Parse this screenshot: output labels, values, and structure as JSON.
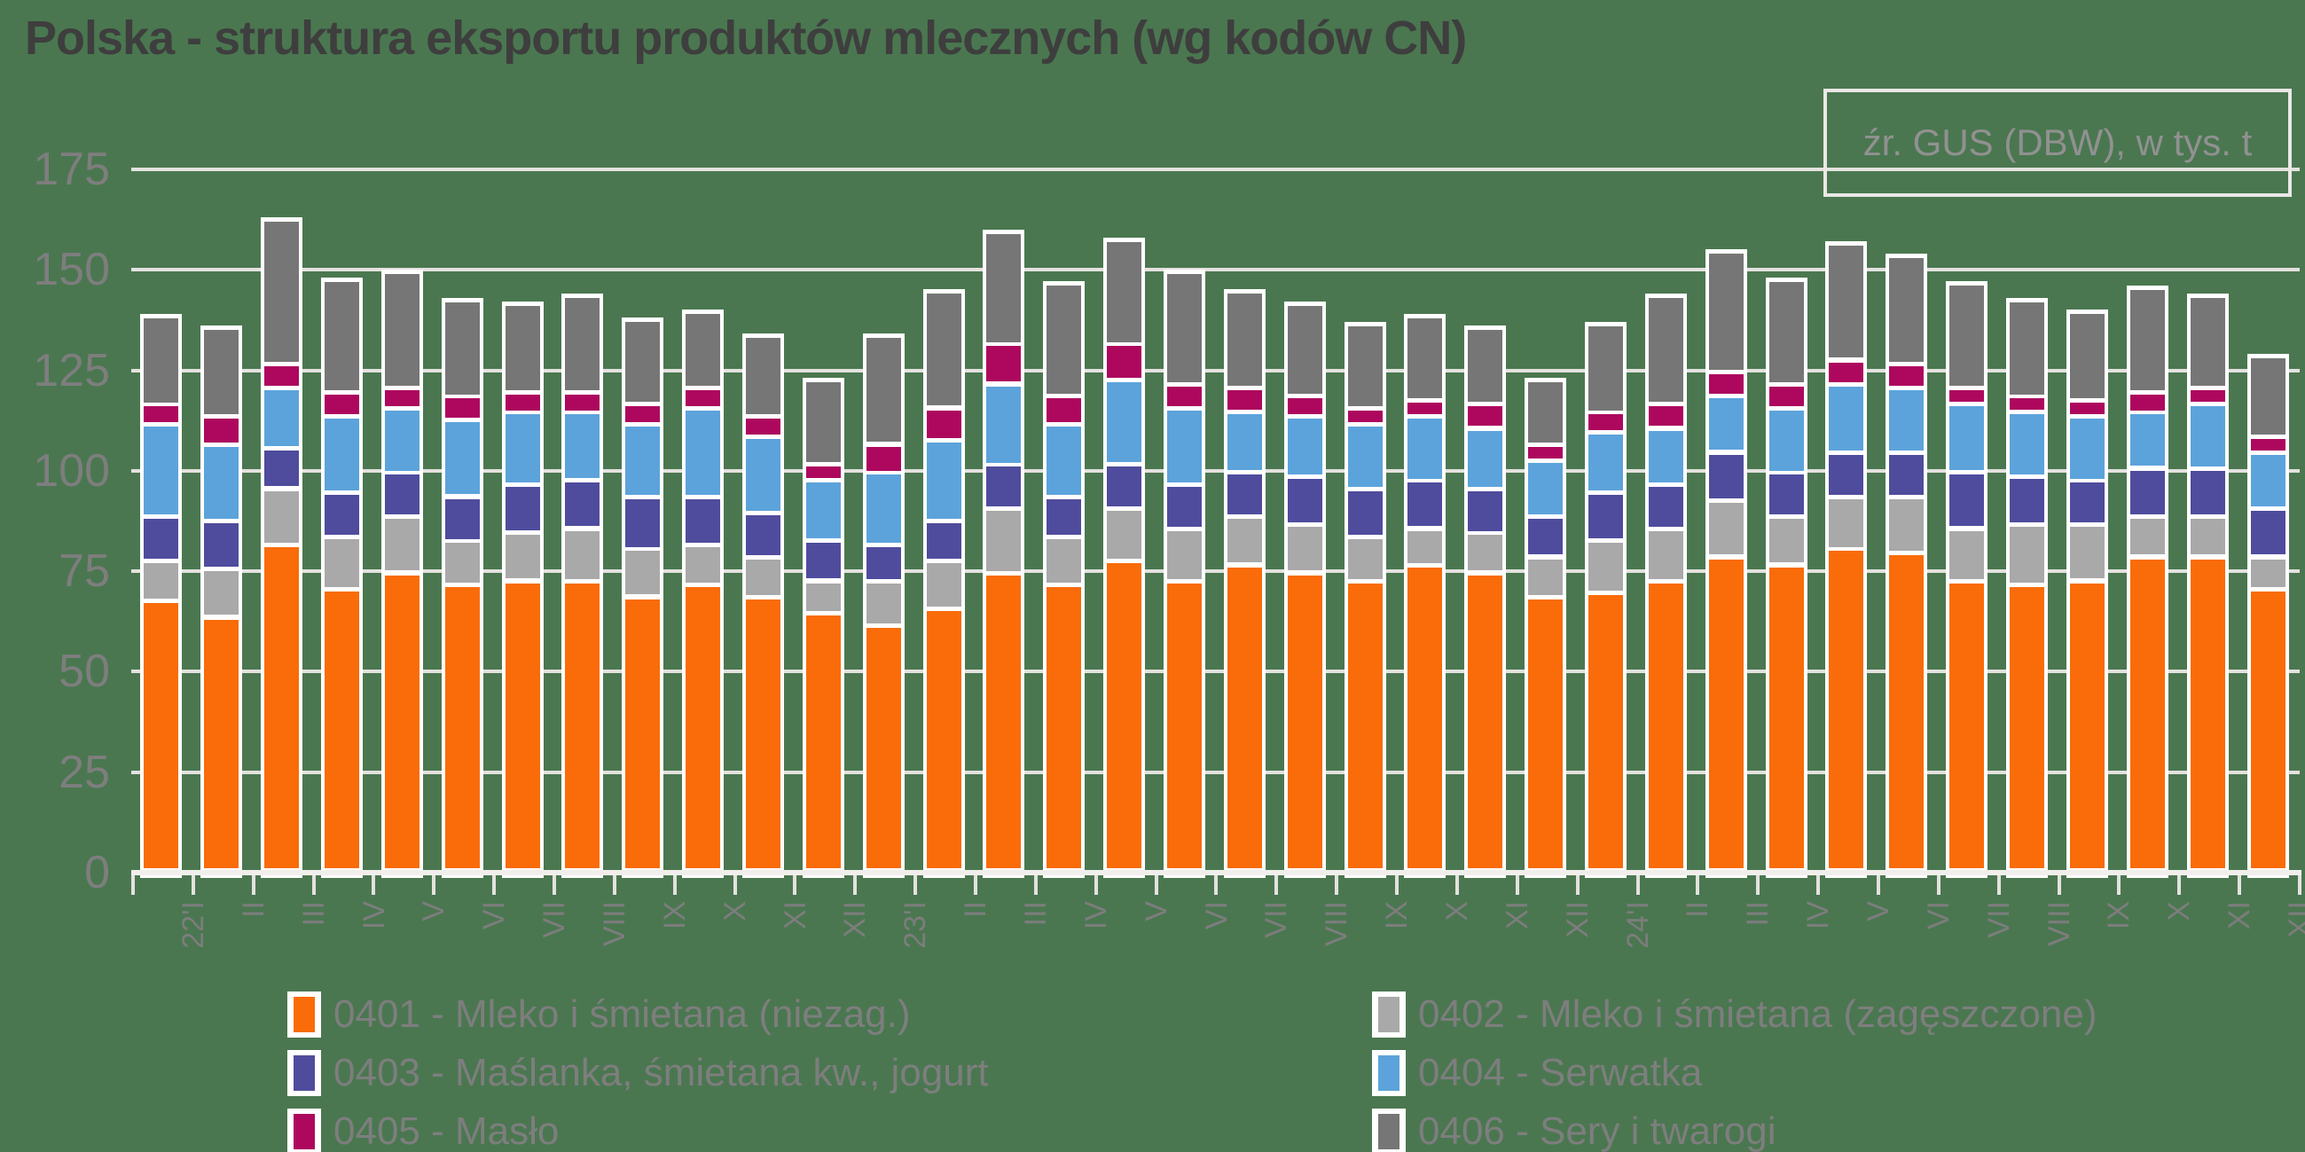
{
  "title": "Polska - struktura eksportu produktów mlecznych (wg kodów CN)",
  "source_note": "źr. GUS (DBW), w tys. t",
  "colors": {
    "background": "#4A7750",
    "title_text": "#3E3E3E",
    "axis_text": "#7D7D7D",
    "grid_line": "#E4E2DF",
    "axis_line": "#F1EFEC",
    "source_text": "#919191",
    "source_border": "#EAE8E6"
  },
  "chart_data": {
    "type": "bar",
    "stacked": true,
    "title": "Polska - struktura eksportu produktów mlecznych (wg kodów CN)",
    "unit": "tys. t",
    "xlabel": "",
    "ylabel": "",
    "grid": true,
    "legend_position": "bottom",
    "y_axis": {
      "ticks": [
        175,
        150,
        125,
        100,
        75,
        50,
        25,
        0
      ],
      "ylim": [
        0,
        175
      ]
    },
    "categories": [
      "22'I",
      "II",
      "III",
      "IV",
      "V",
      "VI",
      "VII",
      "VIII",
      "IX",
      "X",
      "XI",
      "XII",
      "23'I",
      "II",
      "III",
      "IV",
      "V",
      "VI",
      "VII",
      "VIII",
      "IX",
      "X",
      "XI",
      "XII",
      "24'I",
      "II",
      "III",
      "IV",
      "V",
      "VI",
      "VII",
      "VIII",
      "IX",
      "X",
      "XI",
      "XII"
    ],
    "series": [
      {
        "code": "0401",
        "label": "0401 - Mleko i śmietana (niezag.)",
        "color": "#F96C09",
        "values": [
          67,
          63,
          81,
          70,
          74,
          71,
          72,
          72,
          68,
          71,
          68,
          64,
          61,
          65,
          74,
          71,
          77,
          72,
          76,
          74,
          72,
          76,
          74,
          68,
          69,
          72,
          78,
          76,
          80,
          79,
          72,
          71,
          72,
          78,
          78,
          70
        ]
      },
      {
        "code": "0402",
        "label": "0402 - Mleko i śmietana (zagęszczone)",
        "color": "#A9A9A9",
        "values": [
          10,
          12,
          14,
          13,
          14,
          11,
          12,
          13,
          12,
          10,
          10,
          8,
          11,
          12,
          16,
          12,
          13,
          13,
          12,
          12,
          11,
          9,
          10,
          10,
          13,
          13,
          14,
          12,
          13,
          14,
          13,
          15,
          14,
          10,
          10,
          8
        ]
      },
      {
        "code": "0403",
        "label": "0403 - Maślanka, śmietana kw., jogurt",
        "color": "#4F4C9D",
        "values": [
          11,
          12,
          10,
          11,
          11,
          11,
          12,
          12,
          13,
          12,
          11,
          10,
          9,
          10,
          11,
          10,
          11,
          11,
          11,
          12,
          12,
          12,
          11,
          10,
          12,
          11,
          12,
          11,
          11,
          11,
          14,
          12,
          11,
          12,
          12,
          12
        ]
      },
      {
        "code": "0404",
        "label": "0404 - Serwatka",
        "color": "#5CA3DB",
        "values": [
          23,
          19,
          15,
          19,
          16,
          19,
          18,
          17,
          18,
          22,
          19,
          15,
          18,
          20,
          20,
          18,
          21,
          19,
          15,
          15,
          16,
          16,
          15,
          14,
          15,
          14,
          14,
          16,
          17,
          16,
          17,
          16,
          16,
          14,
          16,
          14
        ]
      },
      {
        "code": "0405",
        "label": "0405 - Masło",
        "color": "#AD085E",
        "values": [
          5,
          7,
          6,
          6,
          5,
          6,
          5,
          5,
          5,
          5,
          5,
          4,
          7,
          8,
          10,
          7,
          9,
          6,
          6,
          5,
          4,
          4,
          6,
          4,
          5,
          6,
          6,
          6,
          6,
          6,
          4,
          4,
          4,
          5,
          4,
          4
        ]
      },
      {
        "code": "0406",
        "label": "0406 - Sery i twarogi",
        "color": "#767676",
        "values": [
          22,
          22,
          36,
          28,
          29,
          24,
          22,
          24,
          21,
          19,
          20,
          21,
          27,
          29,
          28,
          28,
          26,
          28,
          24,
          23,
          21,
          21,
          19,
          16,
          22,
          27,
          30,
          26,
          29,
          27,
          26,
          24,
          22,
          26,
          23,
          20
        ]
      }
    ],
    "legend_rows": [
      [
        "0401",
        "0402"
      ],
      [
        "0403",
        "0404"
      ],
      [
        "0405",
        "0406"
      ]
    ]
  }
}
